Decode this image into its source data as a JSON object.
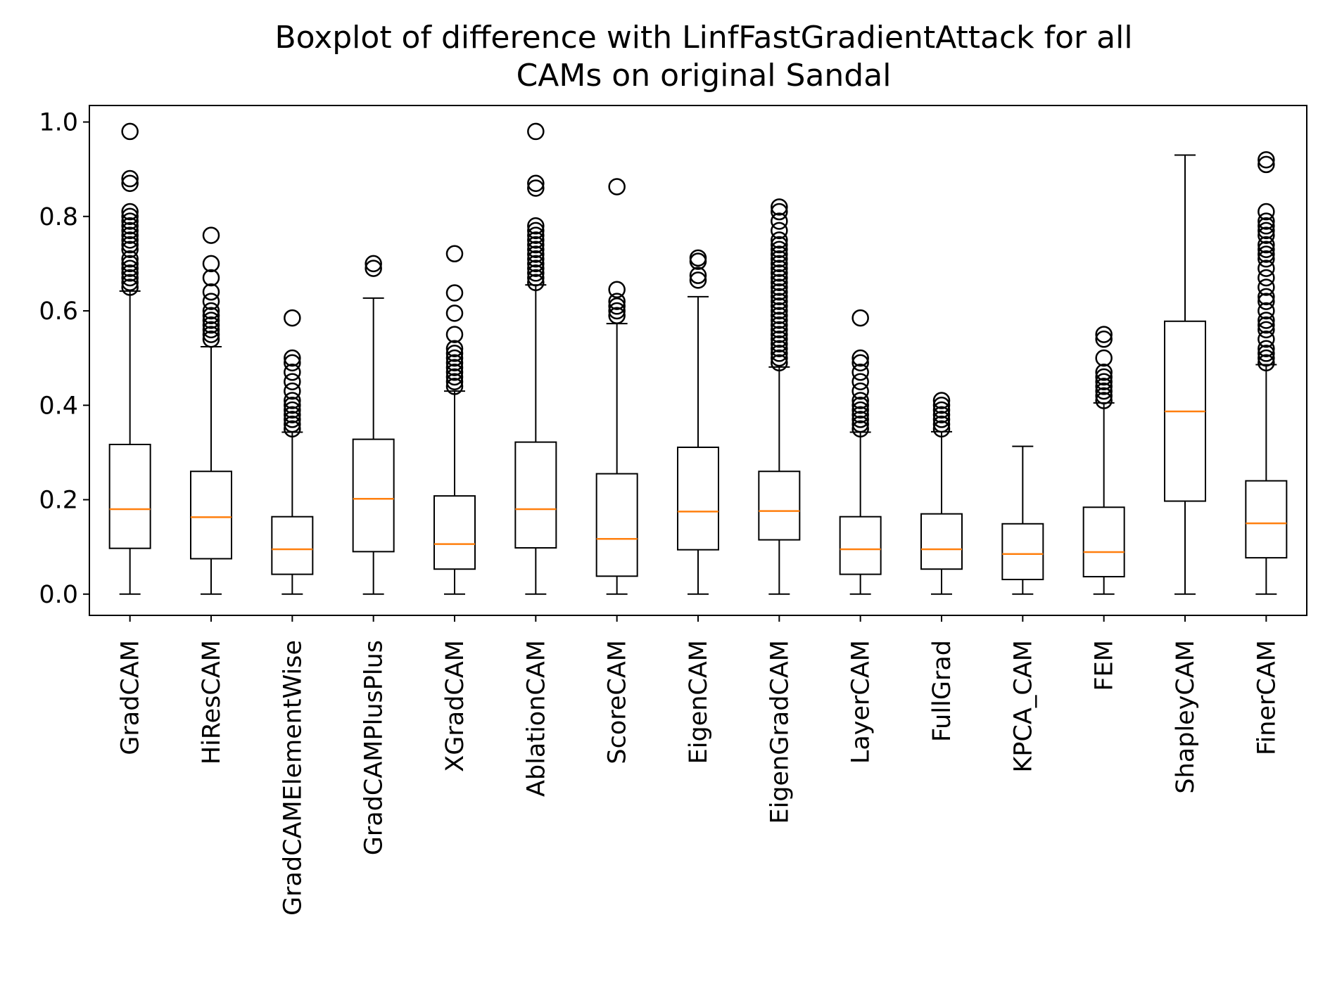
{
  "chart_data": {
    "type": "boxplot",
    "title": "Boxplot of difference with LinfFastGradientAttack for all CAMs on original Sandal",
    "title_lines": [
      "Boxplot of difference with LinfFastGradientAttack for all",
      "CAMs on original Sandal"
    ],
    "xlabel": "",
    "ylabel": "",
    "ylim": [
      -0.045,
      1.035
    ],
    "yticks": [
      0.0,
      0.2,
      0.4,
      0.6,
      0.8,
      1.0
    ],
    "ytick_labels": [
      "0.0",
      "0.2",
      "0.4",
      "0.6",
      "0.8",
      "1.0"
    ],
    "grid": false,
    "legend": "none",
    "colors": {
      "box": "#000000",
      "median": "#ff7f0e",
      "flier": "#000000"
    },
    "categories": [
      "GradCAM",
      "HiResCAM",
      "GradCAMElementWise",
      "GradCAMPlusPlus",
      "XGradCAM",
      "AblationCAM",
      "ScoreCAM",
      "EigenCAM",
      "EigenGradCAM",
      "LayerCAM",
      "FullGrad",
      "KPCA_CAM",
      "FEM",
      "ShapleyCAM",
      "FinerCAM"
    ],
    "boxes": [
      {
        "name": "GradCAM",
        "whislo": 0.0,
        "q1": 0.097,
        "med": 0.18,
        "q3": 0.317,
        "whishi": 0.642,
        "fliers": [
          0.65,
          0.66,
          0.67,
          0.68,
          0.69,
          0.7,
          0.71,
          0.73,
          0.74,
          0.75,
          0.76,
          0.77,
          0.78,
          0.79,
          0.8,
          0.81,
          0.87,
          0.88,
          0.98
        ]
      },
      {
        "name": "HiResCAM",
        "whislo": 0.0,
        "q1": 0.075,
        "med": 0.163,
        "q3": 0.26,
        "whishi": 0.524,
        "fliers": [
          0.54,
          0.55,
          0.56,
          0.57,
          0.58,
          0.59,
          0.6,
          0.62,
          0.64,
          0.67,
          0.7,
          0.76
        ]
      },
      {
        "name": "GradCAMElementWise",
        "whislo": 0.0,
        "q1": 0.042,
        "med": 0.095,
        "q3": 0.164,
        "whishi": 0.343,
        "fliers": [
          0.35,
          0.36,
          0.37,
          0.38,
          0.39,
          0.4,
          0.41,
          0.43,
          0.45,
          0.47,
          0.49,
          0.5,
          0.585
        ]
      },
      {
        "name": "GradCAMPlusPlus",
        "whislo": 0.0,
        "q1": 0.09,
        "med": 0.202,
        "q3": 0.328,
        "whishi": 0.627,
        "fliers": [
          0.69,
          0.7
        ]
      },
      {
        "name": "XGradCAM",
        "whislo": 0.0,
        "q1": 0.053,
        "med": 0.106,
        "q3": 0.208,
        "whishi": 0.43,
        "fliers": [
          0.44,
          0.45,
          0.46,
          0.47,
          0.48,
          0.49,
          0.5,
          0.51,
          0.52,
          0.55,
          0.595,
          0.638,
          0.721
        ]
      },
      {
        "name": "AblationCAM",
        "whislo": 0.0,
        "q1": 0.098,
        "med": 0.18,
        "q3": 0.322,
        "whishi": 0.655,
        "fliers": [
          0.66,
          0.67,
          0.68,
          0.69,
          0.7,
          0.71,
          0.72,
          0.73,
          0.74,
          0.75,
          0.76,
          0.77,
          0.78,
          0.86,
          0.87,
          0.98
        ]
      },
      {
        "name": "ScoreCAM",
        "whislo": 0.0,
        "q1": 0.038,
        "med": 0.117,
        "q3": 0.255,
        "whishi": 0.573,
        "fliers": [
          0.59,
          0.6,
          0.61,
          0.62,
          0.645,
          0.863
        ]
      },
      {
        "name": "EigenCAM",
        "whislo": 0.0,
        "q1": 0.094,
        "med": 0.175,
        "q3": 0.311,
        "whishi": 0.63,
        "fliers": [
          0.665,
          0.675,
          0.705,
          0.712
        ]
      },
      {
        "name": "EigenGradCAM",
        "whislo": 0.0,
        "q1": 0.115,
        "med": 0.176,
        "q3": 0.26,
        "whishi": 0.481,
        "fliers": [
          0.49,
          0.5,
          0.51,
          0.52,
          0.53,
          0.54,
          0.55,
          0.56,
          0.57,
          0.58,
          0.59,
          0.6,
          0.61,
          0.62,
          0.63,
          0.64,
          0.65,
          0.66,
          0.67,
          0.68,
          0.69,
          0.7,
          0.71,
          0.72,
          0.73,
          0.74,
          0.75,
          0.77,
          0.79,
          0.81,
          0.82
        ]
      },
      {
        "name": "LayerCAM",
        "whislo": 0.0,
        "q1": 0.042,
        "med": 0.095,
        "q3": 0.164,
        "whishi": 0.343,
        "fliers": [
          0.35,
          0.36,
          0.37,
          0.38,
          0.39,
          0.4,
          0.41,
          0.43,
          0.45,
          0.47,
          0.49,
          0.5,
          0.585
        ]
      },
      {
        "name": "FullGrad",
        "whislo": 0.0,
        "q1": 0.053,
        "med": 0.095,
        "q3": 0.17,
        "whishi": 0.344,
        "fliers": [
          0.35,
          0.36,
          0.37,
          0.38,
          0.39,
          0.4,
          0.41
        ]
      },
      {
        "name": "KPCA_CAM",
        "whislo": 0.0,
        "q1": 0.031,
        "med": 0.085,
        "q3": 0.149,
        "whishi": 0.313,
        "fliers": []
      },
      {
        "name": "FEM",
        "whislo": 0.0,
        "q1": 0.037,
        "med": 0.089,
        "q3": 0.184,
        "whishi": 0.405,
        "fliers": [
          0.41,
          0.42,
          0.43,
          0.44,
          0.45,
          0.46,
          0.47,
          0.5,
          0.54,
          0.55
        ]
      },
      {
        "name": "ShapleyCAM",
        "whislo": 0.0,
        "q1": 0.197,
        "med": 0.387,
        "q3": 0.578,
        "whishi": 0.93,
        "fliers": []
      },
      {
        "name": "FinerCAM",
        "whislo": 0.0,
        "q1": 0.077,
        "med": 0.15,
        "q3": 0.24,
        "whishi": 0.486,
        "fliers": [
          0.49,
          0.5,
          0.51,
          0.52,
          0.54,
          0.56,
          0.57,
          0.58,
          0.6,
          0.62,
          0.63,
          0.65,
          0.67,
          0.69,
          0.71,
          0.72,
          0.73,
          0.74,
          0.76,
          0.77,
          0.78,
          0.79,
          0.81,
          0.91,
          0.92
        ]
      }
    ]
  }
}
